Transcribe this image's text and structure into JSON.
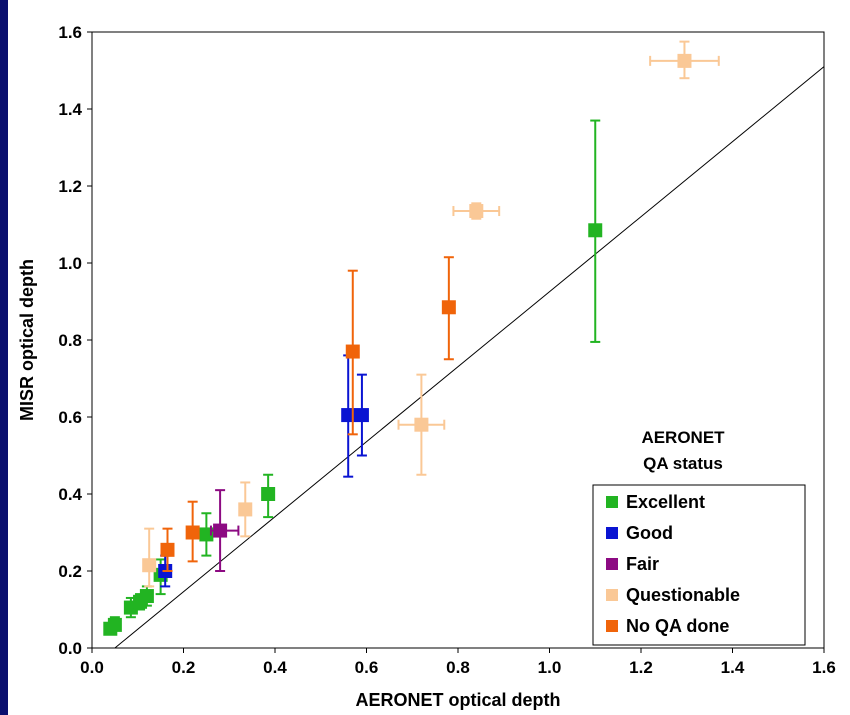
{
  "chart_data": {
    "type": "scatter",
    "xlabel": "AERONET optical depth",
    "ylabel": "MISR optical depth",
    "xlim": [
      0.0,
      1.6
    ],
    "ylim": [
      0.0,
      1.6
    ],
    "xticks": [
      "0.0",
      "0.2",
      "0.4",
      "0.6",
      "0.8",
      "1.0",
      "1.2",
      "1.4",
      "1.6"
    ],
    "yticks": [
      "0.0",
      "0.2",
      "0.4",
      "0.6",
      "0.8",
      "1.0",
      "1.2",
      "1.4",
      "1.6"
    ],
    "xtick_values": [
      0.0,
      0.2,
      0.4,
      0.6,
      0.8,
      1.0,
      1.2,
      1.4,
      1.6
    ],
    "ytick_values": [
      0.0,
      0.2,
      0.4,
      0.6,
      0.8,
      1.0,
      1.2,
      1.4,
      1.6
    ],
    "reference_line": {
      "from": [
        0.05,
        0.0
      ],
      "to": [
        1.6,
        1.51
      ]
    },
    "legend_title_line1": "AERONET",
    "legend_title_line2": "QA status",
    "legend_position": "bottom-right",
    "grid": false,
    "series": [
      {
        "name": "Excellent",
        "color": "#22b422",
        "points": [
          {
            "x": 0.04,
            "y": 0.05,
            "ylo": 0.04,
            "yhi": 0.06
          },
          {
            "x": 0.05,
            "y": 0.06,
            "ylo": 0.05,
            "yhi": 0.08
          },
          {
            "x": 0.085,
            "y": 0.105,
            "ylo": 0.08,
            "yhi": 0.13
          },
          {
            "x": 0.105,
            "y": 0.12,
            "ylo": 0.1,
            "yhi": 0.14
          },
          {
            "x": 0.12,
            "y": 0.135,
            "ylo": 0.11,
            "yhi": 0.16
          },
          {
            "x": 0.15,
            "y": 0.19,
            "ylo": 0.14,
            "yhi": 0.23
          },
          {
            "x": 0.25,
            "y": 0.295,
            "ylo": 0.24,
            "yhi": 0.35
          },
          {
            "x": 0.385,
            "y": 0.4,
            "ylo": 0.34,
            "yhi": 0.45
          },
          {
            "x": 1.1,
            "y": 1.085,
            "ylo": 0.795,
            "yhi": 1.37
          }
        ]
      },
      {
        "name": "Good",
        "color": "#0a14d2",
        "points": [
          {
            "x": 0.16,
            "y": 0.2,
            "ylo": 0.16,
            "yhi": 0.24
          },
          {
            "x": 0.56,
            "y": 0.605,
            "ylo": 0.445,
            "yhi": 0.76
          },
          {
            "x": 0.59,
            "y": 0.605,
            "ylo": 0.5,
            "yhi": 0.71
          }
        ]
      },
      {
        "name": "Fair",
        "color": "#8c0a82",
        "points": [
          {
            "x": 0.28,
            "y": 0.305,
            "ylo": 0.2,
            "yhi": 0.41,
            "xlo": 0.26,
            "xhi": 0.32
          }
        ]
      },
      {
        "name": "Questionable",
        "color": "#fac896",
        "points": [
          {
            "x": 0.125,
            "y": 0.215,
            "ylo": 0.16,
            "yhi": 0.31
          },
          {
            "x": 0.335,
            "y": 0.36,
            "ylo": 0.29,
            "yhi": 0.43
          },
          {
            "x": 0.72,
            "y": 0.58,
            "ylo": 0.45,
            "yhi": 0.71,
            "xlo": 0.67,
            "xhi": 0.77
          },
          {
            "x": 0.84,
            "y": 1.135,
            "ylo": 1.115,
            "yhi": 1.155,
            "xlo": 0.79,
            "xhi": 0.89
          },
          {
            "x": 1.295,
            "y": 1.525,
            "ylo": 1.48,
            "yhi": 1.575,
            "xlo": 1.22,
            "xhi": 1.37
          }
        ]
      },
      {
        "name": "No QA done",
        "color": "#f0640a",
        "points": [
          {
            "x": 0.165,
            "y": 0.255,
            "ylo": 0.2,
            "yhi": 0.31
          },
          {
            "x": 0.22,
            "y": 0.3,
            "ylo": 0.225,
            "yhi": 0.38
          },
          {
            "x": 0.57,
            "y": 0.77,
            "ylo": 0.555,
            "yhi": 0.98
          },
          {
            "x": 0.78,
            "y": 0.885,
            "ylo": 0.75,
            "yhi": 1.015
          }
        ]
      }
    ]
  }
}
